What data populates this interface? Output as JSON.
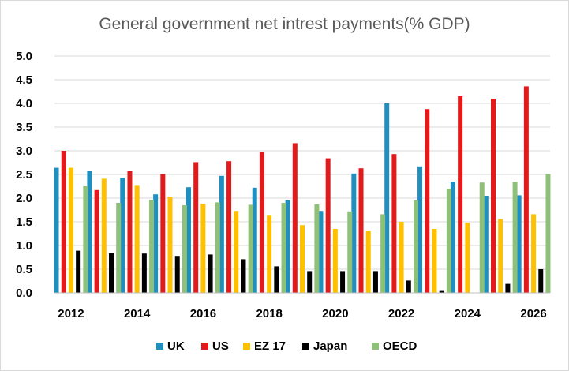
{
  "chart_data": {
    "type": "bar",
    "title": "General government net intrest payments(% GDP)",
    "xlabel": "",
    "ylabel": "",
    "ylim": [
      0,
      5
    ],
    "y_ticks": [
      "0.0",
      "0.5",
      "1.0",
      "1.5",
      "2.0",
      "2.5",
      "3.0",
      "3.5",
      "4.0",
      "4.5",
      "5.0"
    ],
    "grid": true,
    "legend_position": "bottom",
    "categories": [
      2012,
      2013,
      2014,
      2015,
      2016,
      2017,
      2018,
      2019,
      2020,
      2021,
      2022,
      2023,
      2024,
      2025,
      2026
    ],
    "x_tick_labels": [
      "2012",
      "",
      "2014",
      "",
      "2016",
      "",
      "2018",
      "",
      "2020",
      "",
      "2022",
      "",
      "2024",
      "",
      "2026"
    ],
    "series": [
      {
        "name": "UK",
        "color": "#1f8fbf",
        "values": [
          2.64,
          2.58,
          2.43,
          2.08,
          2.23,
          2.47,
          2.22,
          1.95,
          1.73,
          2.52,
          4.0,
          2.67,
          2.35,
          2.05,
          2.06
        ]
      },
      {
        "name": "US",
        "color": "#e31a1c",
        "values": [
          3.0,
          2.17,
          2.57,
          2.51,
          2.76,
          2.78,
          2.98,
          3.16,
          2.84,
          2.63,
          2.93,
          3.88,
          4.15,
          4.1,
          4.36
        ]
      },
      {
        "name": "EZ 17",
        "color": "#ffc000",
        "values": [
          2.64,
          2.41,
          2.26,
          2.03,
          1.88,
          1.73,
          1.63,
          1.43,
          1.35,
          1.3,
          1.5,
          1.35,
          1.48,
          1.56,
          1.66
        ]
      },
      {
        "name": "Japan",
        "color": "#000000",
        "values": [
          0.89,
          0.84,
          0.83,
          0.78,
          0.81,
          0.71,
          0.56,
          0.46,
          0.46,
          0.46,
          0.26,
          0.04,
          0.0,
          0.19,
          0.5
        ]
      },
      {
        "name": "OECD",
        "color": "#8fc07a",
        "values": [
          2.25,
          1.9,
          1.96,
          1.85,
          1.91,
          1.86,
          1.9,
          1.87,
          1.72,
          1.66,
          1.95,
          2.2,
          2.33,
          2.35,
          2.51
        ]
      }
    ]
  }
}
